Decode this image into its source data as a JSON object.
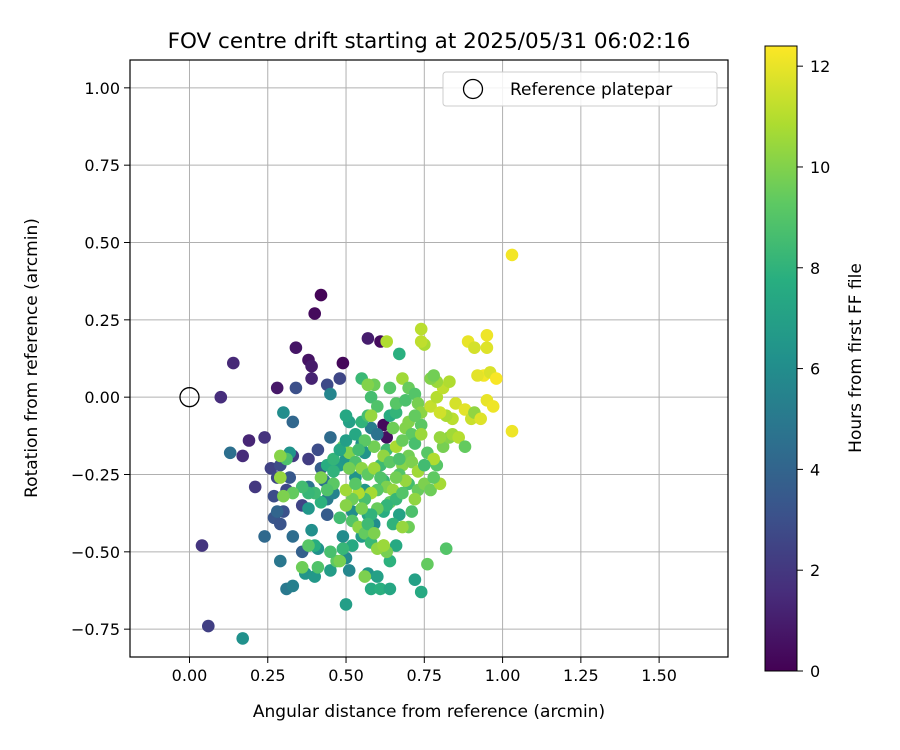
{
  "chart_data": {
    "type": "scatter",
    "title": "FOV centre drift starting at 2025/05/31 06:02:16",
    "xlabel": "Angular distance from reference (arcmin)",
    "ylabel": "Rotation from reference (arcmin)",
    "xlim": [
      -0.19,
      1.72
    ],
    "ylim": [
      -0.84,
      1.09
    ],
    "xticks": [
      0.0,
      0.25,
      0.5,
      0.75,
      1.0,
      1.25,
      1.5
    ],
    "xtick_labels": [
      "0.00",
      "0.25",
      "0.50",
      "0.75",
      "1.00",
      "1.25",
      "1.50"
    ],
    "yticks": [
      -0.75,
      -0.5,
      -0.25,
      0.0,
      0.25,
      0.5,
      0.75,
      1.0
    ],
    "ytick_labels": [
      "−0.75",
      "−0.50",
      "−0.25",
      "0.00",
      "0.25",
      "0.50",
      "0.75",
      "1.00"
    ],
    "grid": true,
    "legend": {
      "placement": "top-right",
      "entries": [
        "Reference platepar"
      ]
    },
    "reference_point": {
      "x": 0.0,
      "y": 0.0
    },
    "colorbar": {
      "label": "Hours from first FF file",
      "range": [
        0,
        12.4
      ],
      "ticks": [
        0,
        2,
        4,
        6,
        8,
        10,
        12
      ],
      "tick_labels": [
        "0",
        "2",
        "4",
        "6",
        "8",
        "10",
        "12"
      ],
      "colormap": "viridis"
    },
    "points": [
      [
        0.42,
        0.33,
        0.1
      ],
      [
        0.4,
        0.27,
        0.3
      ],
      [
        0.49,
        0.11,
        0.2
      ],
      [
        0.61,
        0.18,
        0.4
      ],
      [
        0.57,
        0.19,
        1.0
      ],
      [
        0.38,
        0.12,
        0.6
      ],
      [
        0.39,
        0.1,
        0.9
      ],
      [
        0.34,
        0.16,
        0.7
      ],
      [
        0.39,
        0.06,
        1.2
      ],
      [
        0.28,
        0.03,
        0.8
      ],
      [
        0.14,
        0.11,
        1.4
      ],
      [
        0.1,
        0.0,
        1.6
      ],
      [
        0.63,
        -0.13,
        0.5
      ],
      [
        0.62,
        -0.09,
        0.3
      ],
      [
        0.19,
        -0.14,
        1.3
      ],
      [
        0.17,
        -0.19,
        1.5
      ],
      [
        0.24,
        -0.13,
        1.8
      ],
      [
        0.21,
        -0.29,
        2.0
      ],
      [
        0.04,
        -0.48,
        1.9
      ],
      [
        0.06,
        -0.74,
        2.3
      ],
      [
        0.26,
        -0.23,
        2.4
      ],
      [
        0.29,
        -0.22,
        2.8
      ],
      [
        0.33,
        -0.19,
        2.1
      ],
      [
        0.28,
        -0.26,
        2.6
      ],
      [
        0.31,
        -0.3,
        2.7
      ],
      [
        0.27,
        -0.32,
        2.9
      ],
      [
        0.3,
        -0.37,
        3.1
      ],
      [
        0.27,
        -0.39,
        3.3
      ],
      [
        0.29,
        -0.41,
        3.2
      ],
      [
        0.32,
        -0.26,
        3.4
      ],
      [
        0.34,
        0.03,
        3.0
      ],
      [
        0.44,
        0.04,
        2.8
      ],
      [
        0.48,
        0.06,
        2.6
      ],
      [
        0.44,
        -0.38,
        3.6
      ],
      [
        0.36,
        -0.35,
        2.5
      ],
      [
        0.38,
        -0.2,
        2.2
      ],
      [
        0.41,
        -0.17,
        2.9
      ],
      [
        0.42,
        -0.23,
        3.7
      ],
      [
        0.36,
        -0.5,
        3.8
      ],
      [
        0.28,
        -0.37,
        4.0
      ],
      [
        0.24,
        -0.45,
        4.2
      ],
      [
        0.13,
        -0.18,
        4.5
      ],
      [
        0.33,
        -0.45,
        4.4
      ],
      [
        0.33,
        -0.08,
        4.1
      ],
      [
        0.29,
        -0.53,
        4.9
      ],
      [
        0.31,
        -0.62,
        5.0
      ],
      [
        0.33,
        -0.61,
        5.3
      ],
      [
        0.17,
        -0.78,
        6.2
      ],
      [
        0.38,
        -0.29,
        4.8
      ],
      [
        0.43,
        -0.27,
        4.6
      ],
      [
        0.44,
        -0.33,
        5.1
      ],
      [
        0.46,
        -0.31,
        5.5
      ],
      [
        0.45,
        -0.13,
        4.3
      ],
      [
        0.45,
        0.01,
        5.6
      ],
      [
        0.3,
        -0.05,
        6.0
      ],
      [
        0.32,
        -0.18,
        6.3
      ],
      [
        0.38,
        -0.36,
        6.5
      ],
      [
        0.39,
        -0.43,
        6.1
      ],
      [
        0.37,
        -0.57,
        6.4
      ],
      [
        0.4,
        -0.58,
        6.6
      ],
      [
        0.41,
        -0.49,
        6.2
      ],
      [
        0.45,
        -0.56,
        6.8
      ],
      [
        0.5,
        -0.67,
        6.9
      ],
      [
        0.5,
        -0.52,
        5.8
      ],
      [
        0.51,
        -0.56,
        5.7
      ],
      [
        0.49,
        -0.45,
        5.9
      ],
      [
        0.52,
        -0.37,
        6.0
      ],
      [
        0.48,
        -0.22,
        6.7
      ],
      [
        0.53,
        -0.26,
        6.3
      ],
      [
        0.5,
        -0.2,
        6.5
      ],
      [
        0.55,
        -0.15,
        6.1
      ],
      [
        0.56,
        -0.18,
        6.4
      ],
      [
        0.58,
        -0.1,
        5.2
      ],
      [
        0.6,
        -0.12,
        4.7
      ],
      [
        0.51,
        -0.08,
        7.0
      ],
      [
        0.5,
        -0.06,
        7.4
      ],
      [
        0.56,
        -0.3,
        6.6
      ],
      [
        0.57,
        -0.38,
        7.2
      ],
      [
        0.59,
        -0.41,
        6.0
      ],
      [
        0.55,
        -0.45,
        6.8
      ],
      [
        0.57,
        -0.57,
        6.4
      ],
      [
        0.6,
        -0.58,
        7.0
      ],
      [
        0.58,
        -0.62,
        7.6
      ],
      [
        0.61,
        -0.62,
        7.8
      ],
      [
        0.64,
        -0.62,
        7.3
      ],
      [
        0.64,
        -0.53,
        7.9
      ],
      [
        0.66,
        -0.48,
        7.5
      ],
      [
        0.67,
        -0.38,
        7.1
      ],
      [
        0.65,
        -0.41,
        8.0
      ],
      [
        0.62,
        -0.37,
        7.7
      ],
      [
        0.62,
        -0.27,
        8.2
      ],
      [
        0.61,
        -0.22,
        8.4
      ],
      [
        0.63,
        -0.17,
        8.5
      ],
      [
        0.64,
        -0.06,
        7.6
      ],
      [
        0.66,
        -0.05,
        8.1
      ],
      [
        0.67,
        0.14,
        7.8
      ],
      [
        0.58,
        0.0,
        8.6
      ],
      [
        0.6,
        -0.03,
        8.9
      ],
      [
        0.55,
        0.06,
        8.3
      ],
      [
        0.57,
        0.04,
        9.4
      ],
      [
        0.59,
        0.04,
        9.6
      ],
      [
        0.63,
        0.18,
        10.9
      ],
      [
        0.68,
        0.06,
        10.6
      ],
      [
        0.66,
        -0.02,
        9.1
      ],
      [
        0.69,
        -0.01,
        8.8
      ],
      [
        0.7,
        0.03,
        9.5
      ],
      [
        0.72,
        0.01,
        9.0
      ],
      [
        0.73,
        -0.02,
        9.8
      ],
      [
        0.74,
        -0.05,
        10.2
      ],
      [
        0.69,
        -0.1,
        10.0
      ],
      [
        0.71,
        -0.12,
        9.3
      ],
      [
        0.72,
        -0.15,
        8.7
      ],
      [
        0.74,
        -0.09,
        9.2
      ],
      [
        0.7,
        -0.19,
        9.7
      ],
      [
        0.68,
        -0.22,
        10.1
      ],
      [
        0.67,
        -0.25,
        9.0
      ],
      [
        0.7,
        -0.28,
        8.6
      ],
      [
        0.73,
        -0.3,
        9.5
      ],
      [
        0.75,
        -0.28,
        9.9
      ],
      [
        0.72,
        -0.33,
        10.3
      ],
      [
        0.71,
        -0.37,
        8.8
      ],
      [
        0.7,
        -0.42,
        9.6
      ],
      [
        0.68,
        -0.42,
        10.4
      ],
      [
        0.72,
        -0.59,
        7.0
      ],
      [
        0.74,
        -0.63,
        7.5
      ],
      [
        0.76,
        -0.54,
        9.4
      ],
      [
        0.82,
        -0.49,
        9.0
      ],
      [
        0.77,
        -0.3,
        9.6
      ],
      [
        0.8,
        -0.28,
        10.7
      ],
      [
        0.78,
        -0.26,
        9.3
      ],
      [
        0.79,
        -0.22,
        9.1
      ],
      [
        0.81,
        -0.16,
        9.8
      ],
      [
        0.83,
        -0.13,
        10.1
      ],
      [
        0.8,
        -0.13,
        10.4
      ],
      [
        0.84,
        -0.12,
        10.6
      ],
      [
        0.86,
        -0.13,
        11.0
      ],
      [
        0.88,
        -0.16,
        9.4
      ],
      [
        0.84,
        -0.07,
        11.1
      ],
      [
        0.82,
        -0.06,
        10.8
      ],
      [
        0.77,
        -0.03,
        11.3
      ],
      [
        0.79,
        0.0,
        11.0
      ],
      [
        0.81,
        0.03,
        11.2
      ],
      [
        0.83,
        0.05,
        10.9
      ],
      [
        0.79,
        0.05,
        10.5
      ],
      [
        0.77,
        0.06,
        10.0
      ],
      [
        0.75,
        0.17,
        10.8
      ],
      [
        0.74,
        0.18,
        11.2
      ],
      [
        0.74,
        0.22,
        11.1
      ],
      [
        0.78,
        0.07,
        9.7
      ],
      [
        0.8,
        -0.05,
        11.5
      ],
      [
        0.85,
        -0.02,
        11.6
      ],
      [
        0.88,
        -0.04,
        11.9
      ],
      [
        0.9,
        -0.07,
        11.4
      ],
      [
        0.91,
        -0.05,
        10.3
      ],
      [
        0.93,
        -0.07,
        11.8
      ],
      [
        0.95,
        -0.01,
        12.0
      ],
      [
        0.97,
        -0.03,
        12.1
      ],
      [
        0.94,
        0.07,
        12.2
      ],
      [
        0.96,
        0.08,
        11.7
      ],
      [
        0.98,
        0.06,
        12.3
      ],
      [
        0.92,
        0.07,
        11.9
      ],
      [
        0.89,
        0.18,
        12.0
      ],
      [
        0.91,
        0.16,
        11.6
      ],
      [
        0.95,
        0.16,
        11.8
      ],
      [
        0.95,
        0.2,
        12.1
      ],
      [
        1.03,
        0.46,
        12.2
      ],
      [
        1.03,
        -0.11,
        12.1
      ],
      [
        0.49,
        -0.16,
        9.5
      ],
      [
        0.51,
        -0.18,
        10.0
      ],
      [
        0.53,
        -0.21,
        8.8
      ],
      [
        0.55,
        -0.23,
        10.2
      ],
      [
        0.57,
        -0.25,
        9.3
      ],
      [
        0.59,
        -0.23,
        10.5
      ],
      [
        0.61,
        -0.26,
        8.9
      ],
      [
        0.63,
        -0.29,
        9.9
      ],
      [
        0.65,
        -0.3,
        10.4
      ],
      [
        0.6,
        -0.3,
        9.1
      ],
      [
        0.58,
        -0.31,
        10.7
      ],
      [
        0.56,
        -0.33,
        8.7
      ],
      [
        0.54,
        -0.31,
        10.9
      ],
      [
        0.52,
        -0.33,
        9.6
      ],
      [
        0.5,
        -0.35,
        10.1
      ],
      [
        0.48,
        -0.39,
        8.5
      ],
      [
        0.52,
        -0.4,
        9.0
      ],
      [
        0.54,
        -0.42,
        10.2
      ],
      [
        0.56,
        -0.44,
        9.4
      ],
      [
        0.58,
        -0.47,
        8.3
      ],
      [
        0.62,
        -0.48,
        10.6
      ],
      [
        0.63,
        -0.5,
        9.8
      ],
      [
        0.5,
        -0.3,
        10.6
      ],
      [
        0.46,
        -0.28,
        9.2
      ],
      [
        0.44,
        -0.3,
        8.9
      ],
      [
        0.42,
        -0.34,
        7.9
      ],
      [
        0.4,
        -0.31,
        8.4
      ],
      [
        0.42,
        -0.26,
        9.9
      ],
      [
        0.44,
        -0.22,
        7.7
      ],
      [
        0.46,
        -0.2,
        8.1
      ],
      [
        0.48,
        -0.17,
        7.3
      ],
      [
        0.5,
        -0.14,
        6.9
      ],
      [
        0.53,
        -0.12,
        7.4
      ],
      [
        0.55,
        -0.08,
        8.0
      ],
      [
        0.57,
        -0.06,
        8.6
      ],
      [
        0.59,
        -0.16,
        9.7
      ],
      [
        0.62,
        -0.19,
        10.3
      ],
      [
        0.64,
        -0.21,
        9.2
      ],
      [
        0.66,
        -0.16,
        10.8
      ],
      [
        0.68,
        -0.14,
        9.5
      ],
      [
        0.7,
        -0.08,
        10.0
      ],
      [
        0.72,
        -0.06,
        9.4
      ],
      [
        0.74,
        -0.12,
        10.5
      ],
      [
        0.76,
        -0.18,
        9.1
      ],
      [
        0.78,
        -0.2,
        10.9
      ],
      [
        0.64,
        -0.34,
        9.3
      ],
      [
        0.66,
        -0.33,
        8.2
      ],
      [
        0.68,
        -0.31,
        9.0
      ],
      [
        0.69,
        -0.27,
        10.4
      ],
      [
        0.66,
        -0.26,
        9.7
      ],
      [
        0.67,
        -0.2,
        8.8
      ],
      [
        0.71,
        -0.21,
        9.9
      ],
      [
        0.73,
        -0.24,
        10.6
      ],
      [
        0.75,
        -0.22,
        8.5
      ],
      [
        0.63,
        -0.35,
        8.1
      ],
      [
        0.6,
        -0.36,
        9.5
      ],
      [
        0.58,
        -0.38,
        8.0
      ],
      [
        0.52,
        -0.48,
        7.5
      ],
      [
        0.49,
        -0.49,
        8.2
      ],
      [
        0.47,
        -0.53,
        9.3
      ],
      [
        0.45,
        -0.5,
        8.7
      ],
      [
        0.41,
        -0.55,
        8.9
      ],
      [
        0.4,
        -0.48,
        7.7
      ],
      [
        0.36,
        -0.55,
        9.6
      ],
      [
        0.38,
        -0.48,
        9.1
      ],
      [
        0.38,
        -0.31,
        8.2
      ],
      [
        0.36,
        -0.29,
        8.5
      ],
      [
        0.33,
        -0.31,
        9.4
      ],
      [
        0.3,
        -0.32,
        9.9
      ],
      [
        0.29,
        -0.26,
        10.4
      ],
      [
        0.31,
        -0.2,
        8.8
      ],
      [
        0.29,
        -0.19,
        10.1
      ],
      [
        0.48,
        -0.53,
        9.8
      ],
      [
        0.56,
        -0.58,
        9.9
      ],
      [
        0.6,
        -0.49,
        10.3
      ],
      [
        0.62,
        -0.48,
        10.5
      ],
      [
        0.57,
        0.04,
        10.0
      ],
      [
        0.64,
        0.03,
        9.0
      ],
      [
        0.65,
        -0.1,
        9.6
      ],
      [
        0.58,
        -0.06,
        10.4
      ],
      [
        0.56,
        -0.14,
        9.2
      ],
      [
        0.54,
        -0.17,
        8.5
      ],
      [
        0.51,
        -0.23,
        9.7
      ],
      [
        0.46,
        -0.24,
        8.0
      ],
      [
        0.53,
        -0.28,
        9.1
      ],
      [
        0.55,
        -0.36,
        9.8
      ],
      [
        0.57,
        -0.41,
        8.4
      ],
      [
        0.59,
        -0.44,
        9.9
      ]
    ]
  }
}
